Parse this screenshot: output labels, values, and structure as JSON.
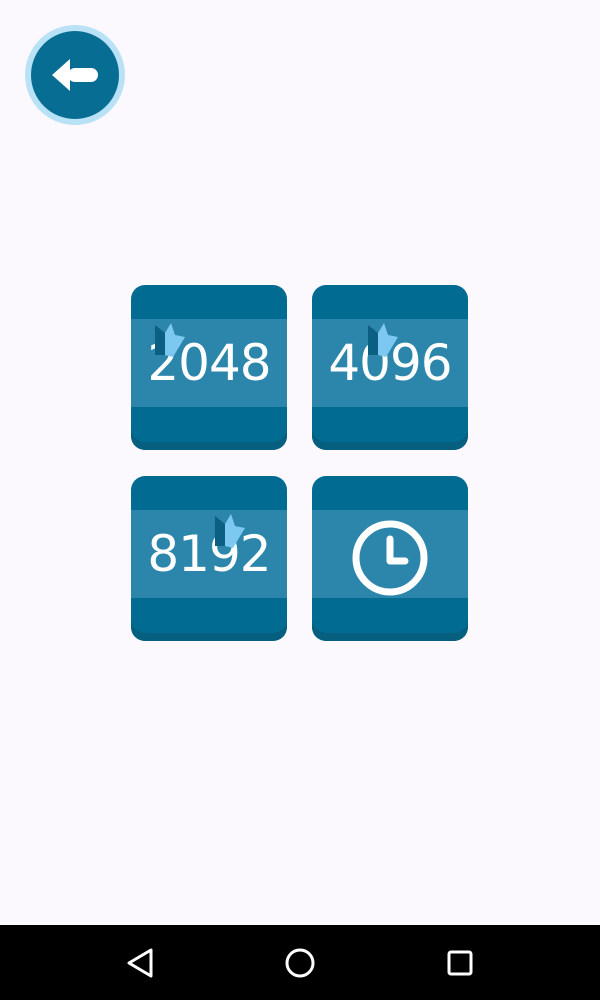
{
  "colors": {
    "background": "#fbf9fd",
    "tile": "#026b91",
    "tile_band": "#2c86ab",
    "accent_light": "#b9e2f7",
    "crown": "#7dc8f0",
    "navbar": "#000000"
  },
  "back_button": {
    "icon": "arrow-left-icon"
  },
  "modes": {
    "mode_2048": {
      "label": "2048",
      "icon": "crown-icon"
    },
    "mode_4096": {
      "label": "4096",
      "icon": "crown-icon"
    },
    "mode_8192": {
      "label": "8192",
      "icon": "crown-icon"
    },
    "time_mode": {
      "icon": "clock-icon"
    }
  },
  "navbar": {
    "back": "triangle-back-icon",
    "home": "circle-home-icon",
    "recents": "square-recents-icon"
  }
}
